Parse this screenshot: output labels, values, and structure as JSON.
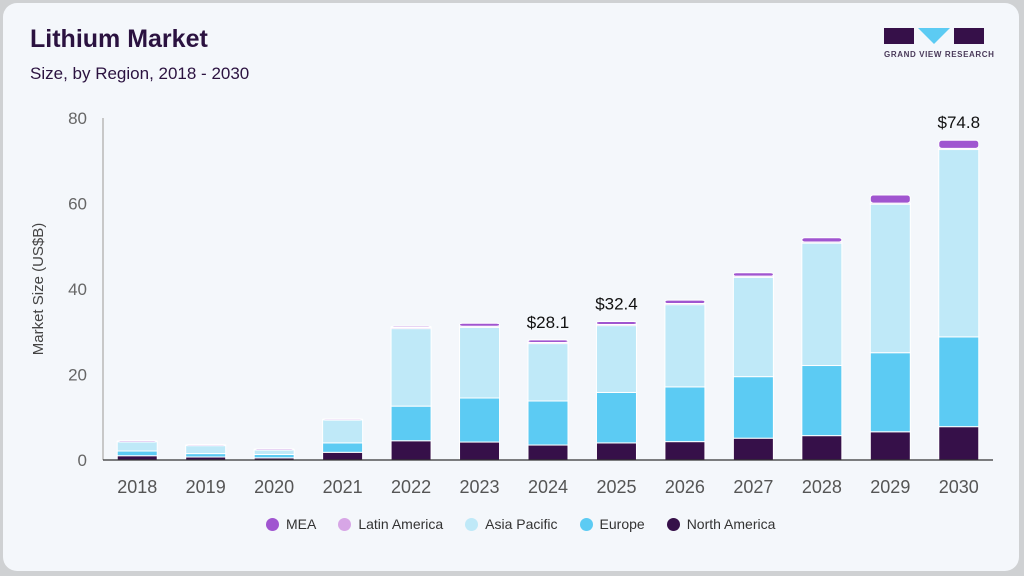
{
  "header": {
    "title": "Lithium Market",
    "subtitle": "Size, by Region, 2018 - 2030",
    "logo_text": "GRAND VIEW RESEARCH"
  },
  "colors": {
    "north_america": "#361049",
    "europe": "#5ccbf3",
    "asia_pacific": "#bfe9f8",
    "latin_america": "#d7a6e6",
    "mea": "#a055d0",
    "logo_dark": "#361049",
    "logo_accent": "#5ccbf3"
  },
  "chart_data": {
    "type": "bar",
    "stacked": true,
    "title": "Lithium Market",
    "subtitle": "Size, by Region, 2018 - 2030",
    "xlabel": "",
    "ylabel": "Market Size (US$B)",
    "ylim": [
      0,
      80
    ],
    "yticks": [
      0,
      20,
      40,
      60,
      80
    ],
    "grid": false,
    "legend_position": "bottom",
    "categories": [
      "2018",
      "2019",
      "2020",
      "2021",
      "2022",
      "2023",
      "2024",
      "2025",
      "2026",
      "2027",
      "2028",
      "2029",
      "2030"
    ],
    "series": [
      {
        "name": "North America",
        "key": "north_america",
        "values": [
          1.0,
          0.7,
          0.5,
          1.8,
          4.5,
          4.2,
          3.5,
          4.0,
          4.3,
          5.1,
          5.7,
          6.6,
          7.8
        ]
      },
      {
        "name": "Europe",
        "key": "europe",
        "values": [
          1.1,
          0.8,
          0.8,
          2.2,
          8.1,
          10.3,
          10.3,
          11.8,
          12.8,
          14.4,
          16.4,
          18.5,
          21.0
        ]
      },
      {
        "name": "Asia Pacific",
        "key": "asia_pacific",
        "values": [
          2.3,
          2.0,
          1.2,
          5.5,
          18.3,
          16.7,
          13.6,
          15.8,
          19.4,
          23.4,
          28.8,
          34.9,
          44.0
        ]
      },
      {
        "name": "Latin America",
        "key": "latin_america",
        "values": [
          0.0,
          0.0,
          0.0,
          0.0,
          0.1,
          0.1,
          0.1,
          0.1,
          0.1,
          0.1,
          0.1,
          0.1,
          0.1
        ]
      },
      {
        "name": "MEA",
        "key": "mea",
        "values": [
          0.1,
          0.1,
          0.1,
          0.1,
          0.3,
          0.7,
          0.6,
          0.7,
          0.8,
          0.8,
          1.0,
          1.9,
          1.9
        ]
      }
    ],
    "data_labels": [
      {
        "category": "2024",
        "text": "$28.1"
      },
      {
        "category": "2025",
        "text": "$32.4"
      },
      {
        "category": "2030",
        "text": "$74.8"
      }
    ],
    "legend": [
      "MEA",
      "Latin America",
      "Asia Pacific",
      "Europe",
      "North America"
    ]
  }
}
